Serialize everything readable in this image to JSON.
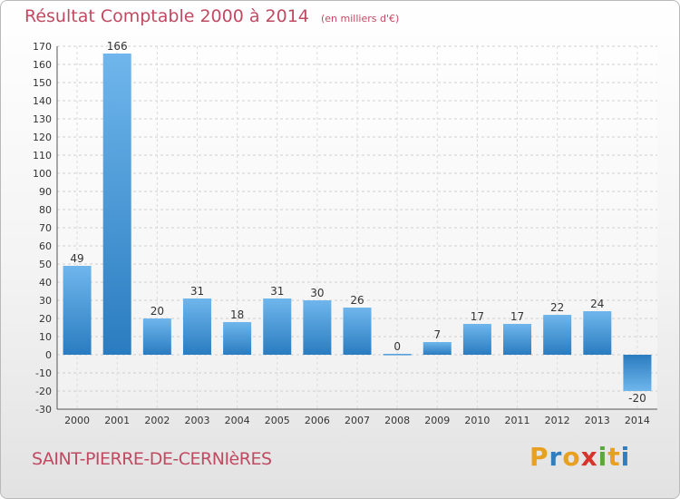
{
  "header": {
    "title": "Résultat Comptable 2000 à 2014",
    "subtitle": "(en milliers d'€)"
  },
  "footer": {
    "commune": "SAINT-PIERRE-DE-CERNIèRES",
    "logo_letters": [
      "P",
      "r",
      "o",
      "x",
      "i",
      "t",
      "i"
    ],
    "logo_colors": [
      "#e8a020",
      "#2f7fc0",
      "#e8a020",
      "#d9342b",
      "#5aa83c",
      "#e8a020",
      "#2f7fc0"
    ]
  },
  "chart_data": {
    "type": "bar",
    "title": "Résultat Comptable 2000 à 2014",
    "subtitle": "(en milliers d'€)",
    "categories": [
      "2000",
      "2001",
      "2002",
      "2003",
      "2004",
      "2005",
      "2006",
      "2007",
      "2008",
      "2009",
      "2010",
      "2011",
      "2012",
      "2013",
      "2014"
    ],
    "values": [
      49,
      166,
      20,
      31,
      18,
      31,
      30,
      26,
      0,
      7,
      17,
      17,
      22,
      24,
      -20
    ],
    "value_labels": [
      "49",
      "166",
      "20",
      "31",
      "18",
      "31",
      "30",
      "26",
      "0",
      "7",
      "17",
      "17",
      "22",
      "24",
      "-20"
    ],
    "ylim": [
      -30,
      170
    ],
    "yticks": [
      -30,
      -20,
      -10,
      0,
      10,
      20,
      30,
      40,
      50,
      60,
      70,
      80,
      90,
      100,
      110,
      120,
      130,
      140,
      150,
      160,
      170
    ],
    "grid": true,
    "bar_color": "#3a8fd4",
    "text_color": "#c04a62"
  }
}
